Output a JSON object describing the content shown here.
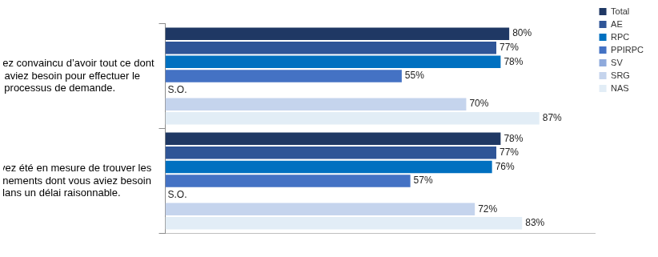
{
  "chart_data": {
    "type": "bar",
    "orientation": "horizontal",
    "categories": [
      "Vous étiez convaincu d’avoir tout ce dont vous aviez besoin pour effectuer le processus de demande.",
      "Vous avez été en mesure de trouver les renseignements dont vous aviez besoin dans un délai raisonnable."
    ],
    "series": [
      {
        "name": "Total",
        "color": "#1f3864",
        "values": [
          80,
          78
        ],
        "value_labels": [
          "80%",
          "78%"
        ]
      },
      {
        "name": "AE",
        "color": "#2f5597",
        "values": [
          77,
          77
        ],
        "value_labels": [
          "77%",
          "77%"
        ]
      },
      {
        "name": "RPC",
        "color": "#0070c0",
        "values": [
          78,
          76
        ],
        "value_labels": [
          "78%",
          "76%"
        ]
      },
      {
        "name": "PPIRPC",
        "color": "#4472c4",
        "values": [
          55,
          57
        ],
        "value_labels": [
          "55%",
          "57%"
        ]
      },
      {
        "name": "SV",
        "color": "#8faadc",
        "values": [
          null,
          null
        ],
        "value_labels": [
          "S.O.",
          "S.O."
        ]
      },
      {
        "name": "SRG",
        "color": "#c5d4ed",
        "values": [
          70,
          72
        ],
        "value_labels": [
          "70%",
          "72%"
        ]
      },
      {
        "name": "NAS",
        "color": "#e2edf6",
        "values": [
          87,
          83
        ],
        "value_labels": [
          "87%",
          "83%"
        ]
      }
    ],
    "xlim": [
      0,
      100
    ],
    "data_labels": true,
    "tick_labels": "y",
    "grid": false,
    "legend": "top-right"
  }
}
